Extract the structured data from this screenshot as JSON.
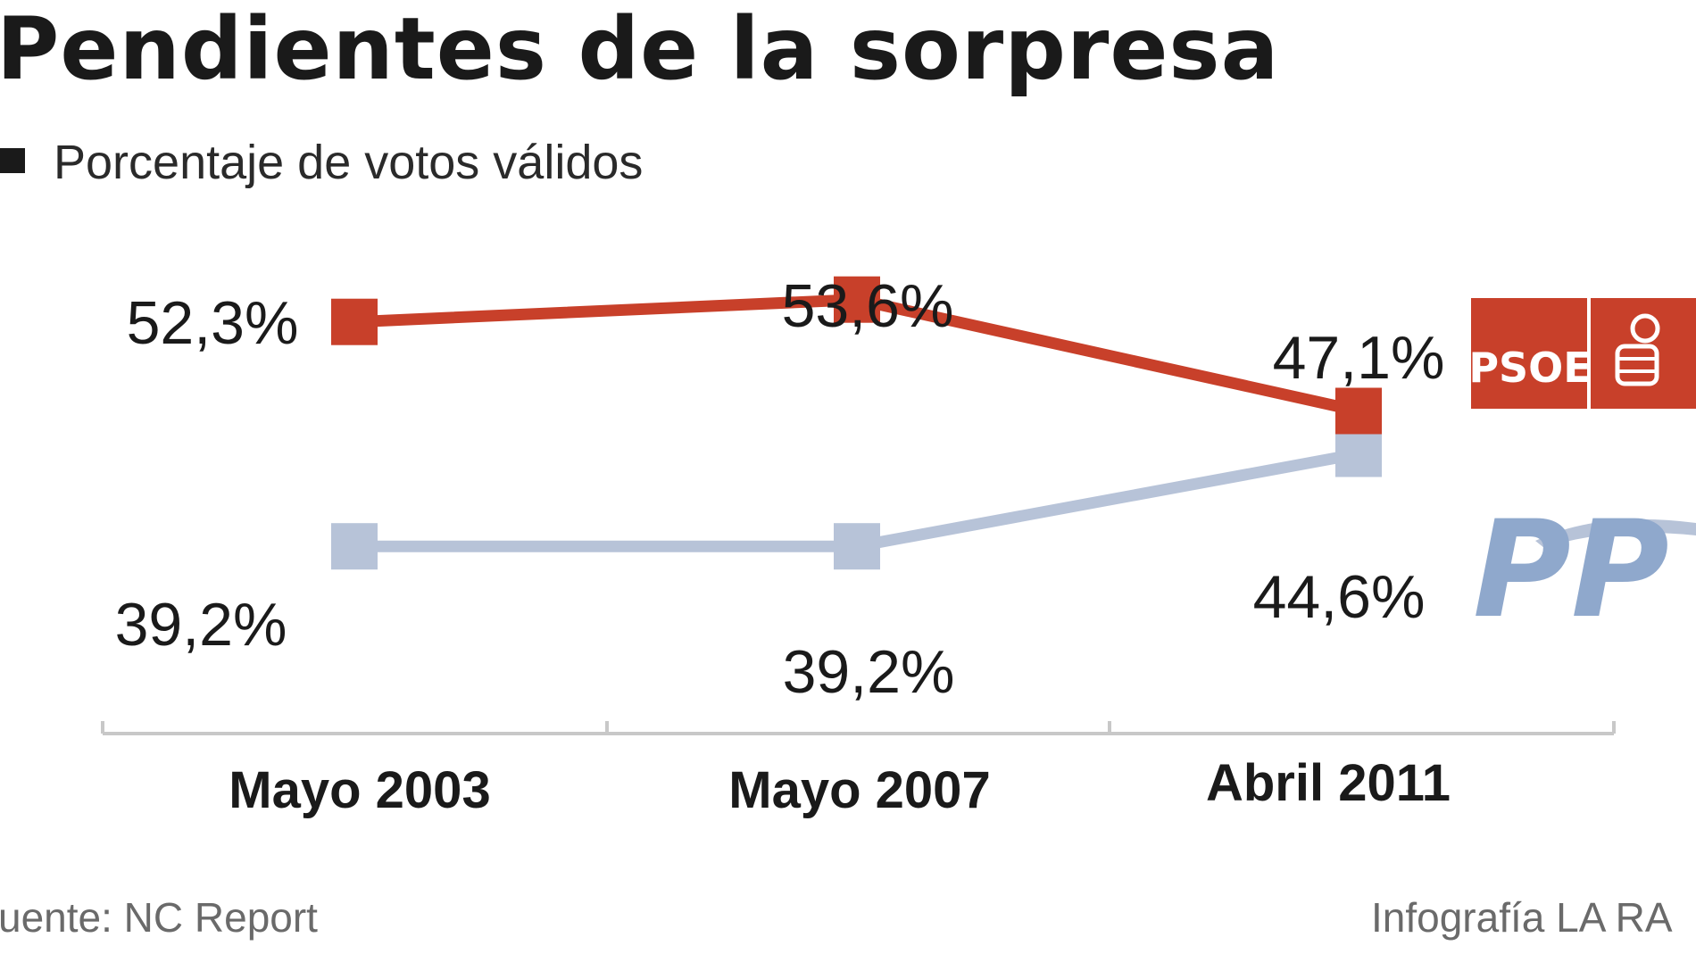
{
  "chart_data": {
    "type": "line",
    "title": "Pendientes de la sorpresa",
    "subtitle": "Porcentaje de votos válidos",
    "categories": [
      "Mayo 2003",
      "Mayo 2007",
      "Abril 2011"
    ],
    "series": [
      {
        "name": "PSOE",
        "values": [
          52.3,
          53.6,
          47.1
        ],
        "labels": [
          "52,3%",
          "53,6%",
          "47,1%"
        ],
        "color": "#c8402a"
      },
      {
        "name": "PP",
        "values": [
          39.2,
          39.2,
          44.6
        ],
        "labels": [
          "39,2%",
          "39,2%",
          "44,6%"
        ],
        "color": "#b7c3d8"
      }
    ],
    "grid": false,
    "source": "uente: NC Report",
    "credit": "Infografía LA RA"
  },
  "logos": {
    "psoe": {
      "text": "PSOE",
      "color": "#c8402a"
    },
    "pp": {
      "text": "PP",
      "color": "#8fa8cc"
    }
  },
  "colors": {
    "subtitle_marker": "#1a1a1a",
    "axis": "#c8c8c8"
  }
}
